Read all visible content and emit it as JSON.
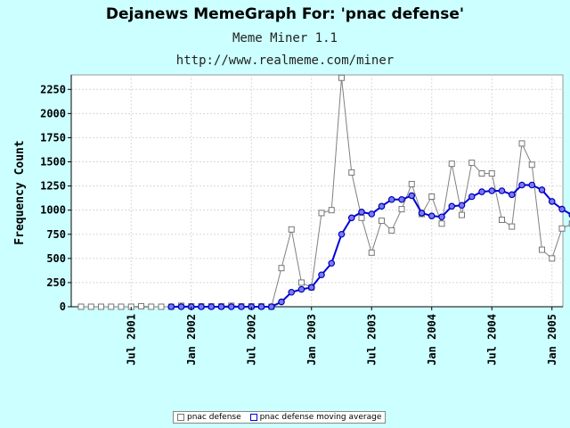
{
  "title": "Dejanews MemeGraph For: 'pnac defense'",
  "subtitle1": "Meme Miner 1.1",
  "subtitle2": "http://www.realmeme.com/miner",
  "colors": {
    "background": "#ccffff",
    "raw_series": "#808080",
    "avg_series": "#0000dd"
  },
  "chart_data": {
    "type": "line",
    "ylabel": "Frequency Count",
    "xlabel": "",
    "ylim": [
      0,
      2400
    ],
    "yticks": [
      0,
      250,
      500,
      750,
      1000,
      1250,
      1500,
      1750,
      2000,
      2250
    ],
    "xticks": [
      {
        "label": "Jul 2001",
        "index": 5
      },
      {
        "label": "Jan 2002",
        "index": 11
      },
      {
        "label": "Jul 2002",
        "index": 17
      },
      {
        "label": "Jan 2003",
        "index": 23
      },
      {
        "label": "Jul 2003",
        "index": 29
      },
      {
        "label": "Jan 2004",
        "index": 35
      },
      {
        "label": "Jul 2004",
        "index": 41
      },
      {
        "label": "Jan 2005",
        "index": 47
      }
    ],
    "grid": true,
    "legend_position": "bottom",
    "series": [
      {
        "name": "pnac defense",
        "marker": "square",
        "values": [
          0,
          0,
          0,
          0,
          0,
          0,
          5,
          0,
          0,
          0,
          10,
          5,
          5,
          5,
          5,
          10,
          5,
          5,
          5,
          0,
          400,
          800,
          250,
          200,
          970,
          1000,
          2370,
          1390,
          920,
          560,
          890,
          790,
          1010,
          1270,
          960,
          1140,
          860,
          1480,
          950,
          1490,
          1380,
          1380,
          900,
          830,
          1690,
          1470,
          590,
          500,
          810,
          860
        ]
      },
      {
        "name": "pnac defense moving average",
        "marker": "circle",
        "start_index": 9,
        "values": [
          0,
          0,
          0,
          0,
          0,
          0,
          0,
          0,
          0,
          0,
          0,
          50,
          150,
          180,
          200,
          330,
          450,
          750,
          920,
          980,
          960,
          1040,
          1110,
          1110,
          1150,
          970,
          940,
          930,
          1040,
          1050,
          1140,
          1190,
          1200,
          1200,
          1160,
          1260,
          1260,
          1210,
          1090,
          1010,
          950
        ]
      }
    ]
  }
}
